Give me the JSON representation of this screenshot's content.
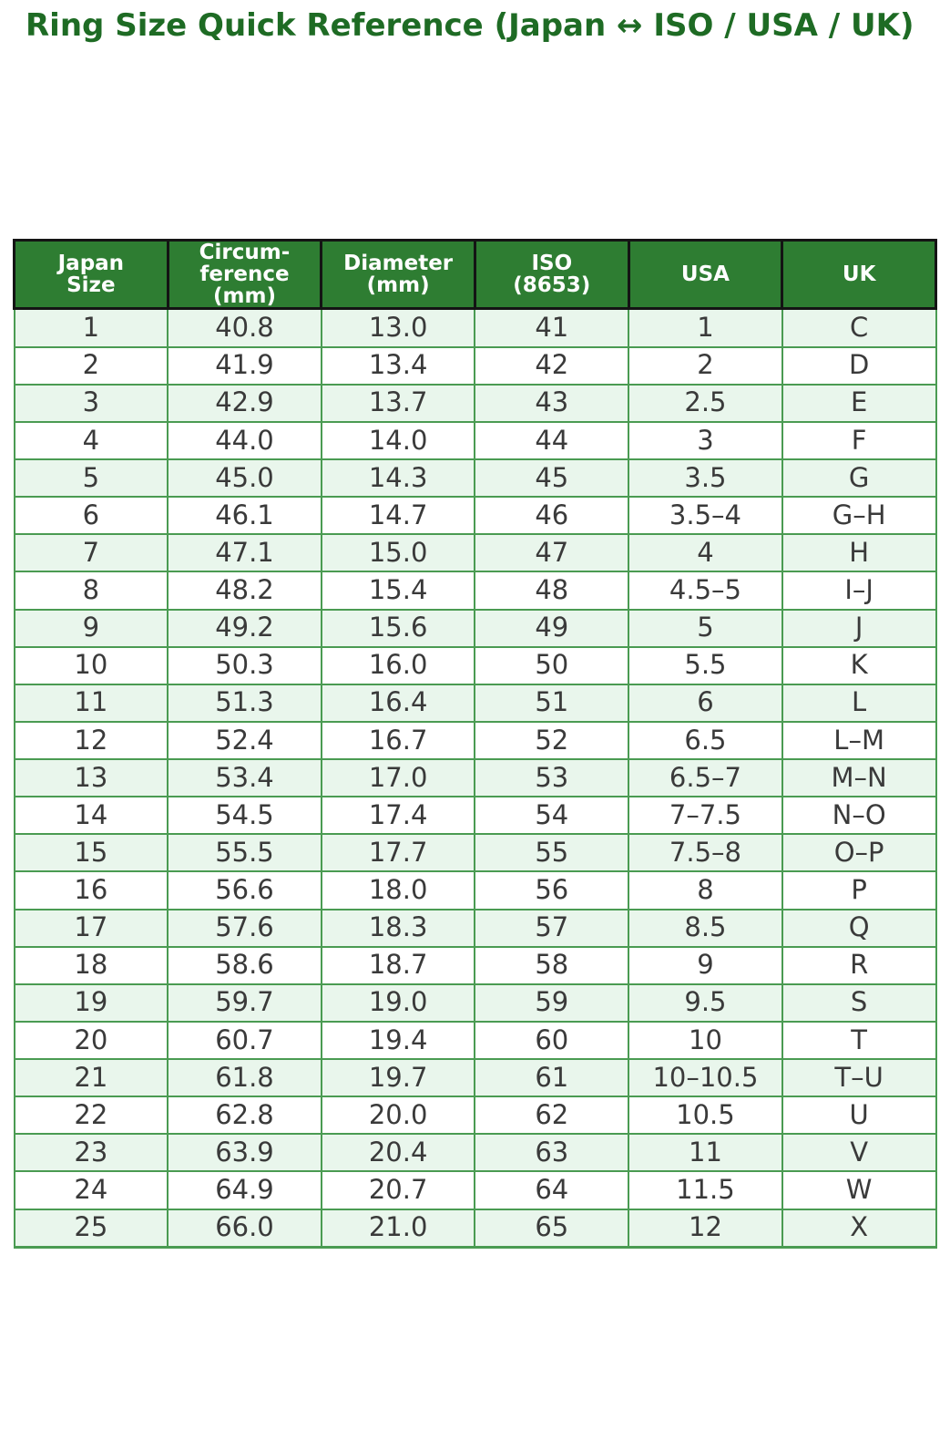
{
  "title": "Ring Size Quick Reference (Japan ↔ ISO / USA / UK)",
  "chart_data": {
    "type": "table",
    "title": "Ring Size Quick Reference (Japan ↔ ISO / USA / UK)",
    "columns": [
      "Japan\nSize",
      "Circum-\nference\n(mm)",
      "Diameter\n(mm)",
      "ISO\n(8653)",
      "USA",
      "UK"
    ],
    "rows": [
      [
        "1",
        "40.8",
        "13.0",
        "41",
        "1",
        "C"
      ],
      [
        "2",
        "41.9",
        "13.4",
        "42",
        "2",
        "D"
      ],
      [
        "3",
        "42.9",
        "13.7",
        "43",
        "2.5",
        "E"
      ],
      [
        "4",
        "44.0",
        "14.0",
        "44",
        "3",
        "F"
      ],
      [
        "5",
        "45.0",
        "14.3",
        "45",
        "3.5",
        "G"
      ],
      [
        "6",
        "46.1",
        "14.7",
        "46",
        "3.5–4",
        "G–H"
      ],
      [
        "7",
        "47.1",
        "15.0",
        "47",
        "4",
        "H"
      ],
      [
        "8",
        "48.2",
        "15.4",
        "48",
        "4.5–5",
        "I–J"
      ],
      [
        "9",
        "49.2",
        "15.6",
        "49",
        "5",
        "J"
      ],
      [
        "10",
        "50.3",
        "16.0",
        "50",
        "5.5",
        "K"
      ],
      [
        "11",
        "51.3",
        "16.4",
        "51",
        "6",
        "L"
      ],
      [
        "12",
        "52.4",
        "16.7",
        "52",
        "6.5",
        "L–M"
      ],
      [
        "13",
        "53.4",
        "17.0",
        "53",
        "6.5–7",
        "M–N"
      ],
      [
        "14",
        "54.5",
        "17.4",
        "54",
        "7–7.5",
        "N–O"
      ],
      [
        "15",
        "55.5",
        "17.7",
        "55",
        "7.5–8",
        "O–P"
      ],
      [
        "16",
        "56.6",
        "18.0",
        "56",
        "8",
        "P"
      ],
      [
        "17",
        "57.6",
        "18.3",
        "57",
        "8.5",
        "Q"
      ],
      [
        "18",
        "58.6",
        "18.7",
        "58",
        "9",
        "R"
      ],
      [
        "19",
        "59.7",
        "19.0",
        "59",
        "9.5",
        "S"
      ],
      [
        "20",
        "60.7",
        "19.4",
        "60",
        "10",
        "T"
      ],
      [
        "21",
        "61.8",
        "19.7",
        "61",
        "10–10.5",
        "T–U"
      ],
      [
        "22",
        "62.8",
        "20.0",
        "62",
        "10.5",
        "U"
      ],
      [
        "23",
        "63.9",
        "20.4",
        "63",
        "11",
        "V"
      ],
      [
        "24",
        "64.9",
        "20.7",
        "64",
        "11.5",
        "W"
      ],
      [
        "25",
        "66.0",
        "21.0",
        "65",
        "12",
        "X"
      ]
    ],
    "legend_position": "none",
    "grid": "table-borders"
  },
  "colors": {
    "title_text": "#1e6b24",
    "header_bg": "#2e7d32",
    "header_text": "#ffffff",
    "header_border": "#141414",
    "body_border": "#4a9b52",
    "row_alt_bg": "#e9f6ec",
    "row_bg": "#ffffff",
    "body_text": "#3a3a3a",
    "page_bg": "#ffffff"
  }
}
